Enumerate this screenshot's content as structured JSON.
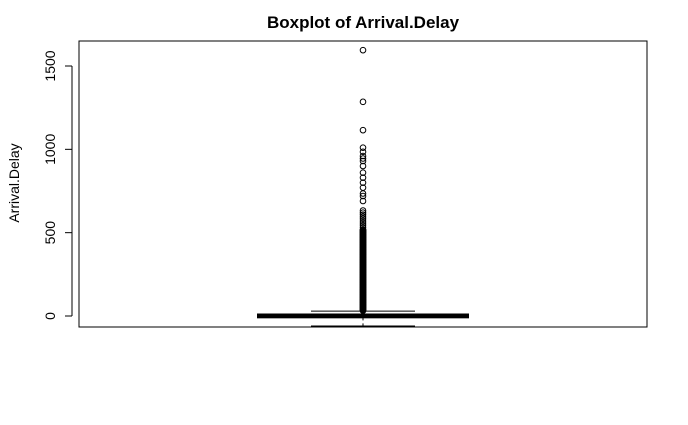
{
  "chart_data": {
    "type": "boxplot",
    "title": "Boxplot of Arrival.Delay",
    "ylabel": "Arrival.Delay",
    "xlabel": "",
    "ylim": [
      -60,
      1630
    ],
    "yticks": [
      0,
      500,
      1000,
      1500
    ],
    "ytick_labels": [
      "0",
      "500",
      "1000",
      "1500"
    ],
    "box": {
      "lower_whisker": -60,
      "q1": -2,
      "median": 0,
      "q3": 3,
      "upper_whisker": 29
    },
    "outliers_dense_range": [
      32,
      520
    ],
    "outliers": [
      532,
      545,
      558,
      570,
      583,
      595,
      608,
      620,
      633,
      690,
      720,
      735,
      770,
      800,
      830,
      860,
      900,
      930,
      945,
      960,
      985,
      1010,
      1115,
      1285,
      1595
    ],
    "grid": false,
    "box_color": "#000000",
    "background": "#ffffff"
  }
}
